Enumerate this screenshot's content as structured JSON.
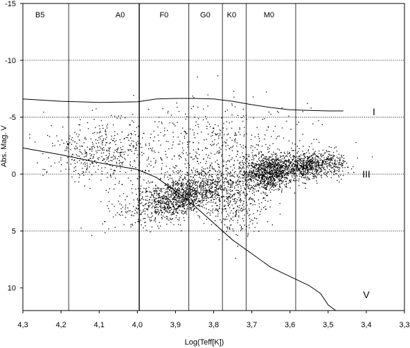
{
  "chart_data": {
    "type": "scatter",
    "title": "",
    "xlabel": "Log(Teff[K])",
    "ylabel": "Abs. Mag. V",
    "xlim": [
      4.3,
      3.3
    ],
    "ylim": [
      -15,
      12
    ],
    "x_reversed": true,
    "y_inverted": true,
    "x_ticks": [
      4.3,
      4.2,
      4.1,
      4.0,
      3.9,
      3.8,
      3.7,
      3.6,
      3.5,
      3.4,
      3.3
    ],
    "x_tick_labels": [
      "4,3",
      "4,2",
      "4,1",
      "4,0",
      "3,9",
      "3,8",
      "3,7",
      "3,6",
      "3,5",
      "3,4",
      "3,3"
    ],
    "y_ticks": [
      -15,
      -10,
      -5,
      0,
      5,
      10
    ],
    "y_tick_labels": [
      "-15",
      "-10",
      "-5",
      "0",
      "5",
      "10"
    ],
    "horizontal_dotted_lines": [
      -10,
      -5,
      0,
      5
    ],
    "spectral_classes": [
      {
        "label": "B5",
        "x": 4.18
      },
      {
        "label": "A0",
        "x": 3.995
      },
      {
        "label": "F0",
        "x": 3.865
      },
      {
        "label": "G0",
        "x": 3.777
      },
      {
        "label": "K0",
        "x": 3.715
      },
      {
        "label": "M0",
        "x": 3.585
      }
    ],
    "spectral_label_positions": [
      4.255,
      4.045,
      3.93,
      3.822,
      3.753,
      3.655
    ],
    "luminosity_classes": [
      {
        "label": "I",
        "x": 3.38,
        "y": -5.5
      },
      {
        "label": "III",
        "x": 3.4,
        "y": 0
      },
      {
        "label": "V",
        "x": 3.4,
        "y": 10.6
      }
    ],
    "series": [
      {
        "type": "line",
        "points": [
          [
            4.3,
            -6.6
          ],
          [
            4.2,
            -6.4
          ],
          [
            4.1,
            -6.3
          ],
          [
            4.0,
            -6.35
          ],
          [
            3.95,
            -6.6
          ],
          [
            3.9,
            -6.65
          ],
          [
            3.85,
            -6.65
          ],
          [
            3.8,
            -6.6
          ],
          [
            3.75,
            -6.4
          ],
          [
            3.7,
            -6.1
          ],
          [
            3.65,
            -5.85
          ],
          [
            3.6,
            -5.65
          ],
          [
            3.55,
            -5.6
          ],
          [
            3.5,
            -5.55
          ],
          [
            3.46,
            -5.55
          ]
        ]
      },
      {
        "type": "line",
        "points": [
          [
            4.3,
            -2.3
          ],
          [
            4.2,
            -1.7
          ],
          [
            4.1,
            -1.0
          ],
          [
            4.0,
            -0.4
          ],
          [
            3.95,
            0.3
          ],
          [
            3.9,
            1.5
          ],
          [
            3.85,
            2.8
          ],
          [
            3.8,
            4.3
          ],
          [
            3.75,
            5.8
          ],
          [
            3.7,
            7.0
          ],
          [
            3.65,
            8.2
          ],
          [
            3.6,
            9.0
          ],
          [
            3.55,
            9.8
          ],
          [
            3.52,
            10.5
          ],
          [
            3.5,
            11.5
          ],
          [
            3.48,
            12.0
          ]
        ]
      }
    ],
    "scatter_clusters": [
      {
        "n": 1500,
        "cx": 3.88,
        "cy": 1.8,
        "sx": 0.075,
        "sy": 0.9,
        "tilt": -17
      },
      {
        "n": 1100,
        "cx": 3.655,
        "cy": -0.2,
        "sx": 0.035,
        "sy": 0.8,
        "tilt": -10
      },
      {
        "n": 500,
        "cx": 3.555,
        "cy": -0.8,
        "sx": 0.025,
        "sy": 0.6,
        "tilt": -5
      },
      {
        "n": 200,
        "cx": 3.4925,
        "cy": -1.0,
        "sx": 0.025,
        "sy": 0.6,
        "tilt": 0
      },
      {
        "n": 450,
        "cx": 4.09,
        "cy": -2.0,
        "sx": 0.07,
        "sy": 1.3,
        "tilt": 0
      },
      {
        "n": 300,
        "cx": 3.74,
        "cy": 2.8,
        "sx": 0.04,
        "sy": 1.4,
        "tilt": -20
      },
      {
        "n": 500,
        "cx": 3.8,
        "cy": -2.6,
        "sx": 0.13,
        "sy": 1.8,
        "tilt": 0
      }
    ]
  }
}
